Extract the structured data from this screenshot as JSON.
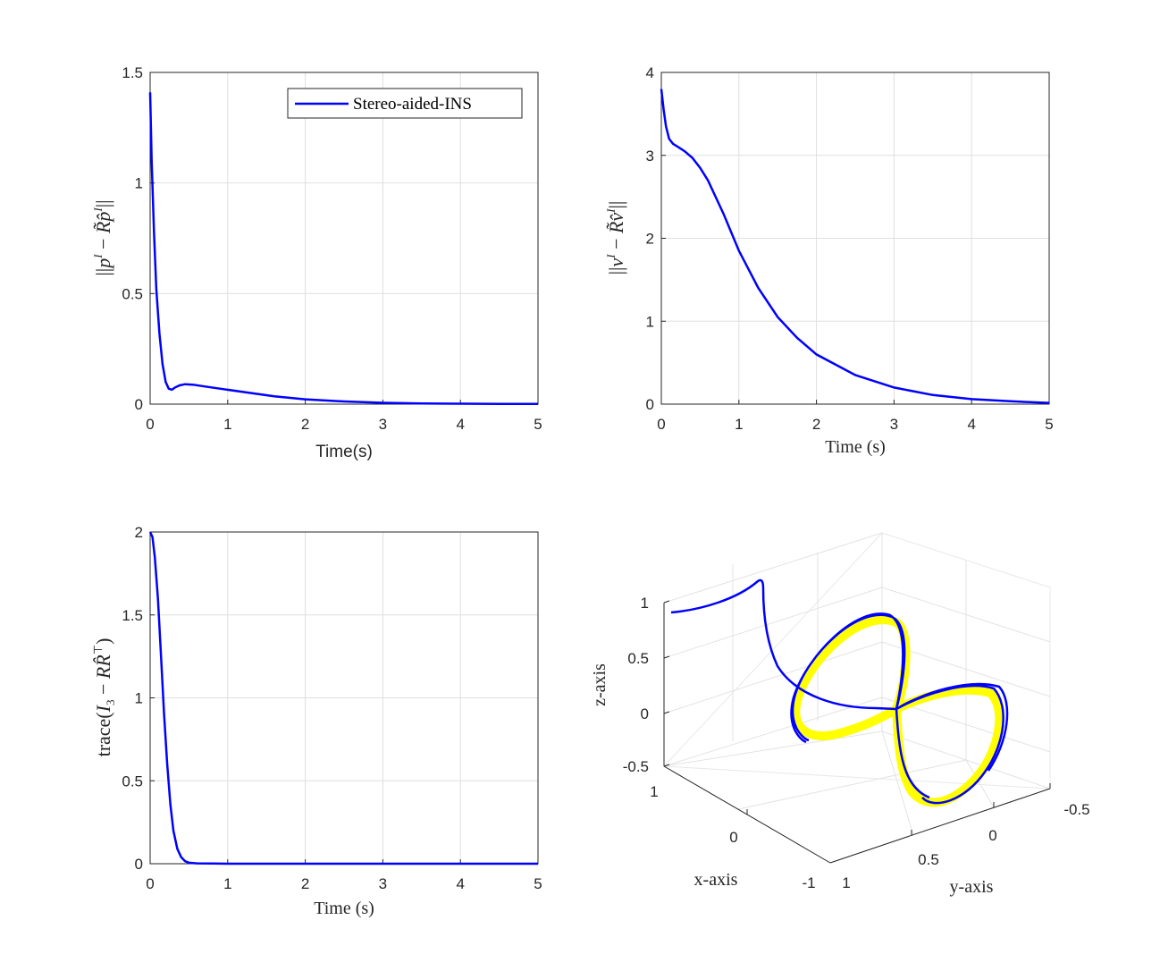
{
  "colors": {
    "series": "#0000ff",
    "reference": "#ffff00",
    "axis": "#262626",
    "grid": "#dfdfdf"
  },
  "chart_data": [
    {
      "type": "line",
      "xlabel": "Time(s)",
      "ylabel": "||p^I − R̃p̂^I||",
      "xlim": [
        0,
        5
      ],
      "ylim": [
        0,
        1.5
      ],
      "xticks": [
        "0",
        "1",
        "2",
        "3",
        "4",
        "5"
      ],
      "yticks": [
        "0",
        "0.5",
        "1",
        "1.5"
      ],
      "grid": true,
      "legend": {
        "position": "top-right",
        "entries": [
          "Stereo-aided-INS"
        ]
      },
      "series": [
        {
          "name": "Stereo-aided-INS",
          "x": [
            0,
            0.02,
            0.05,
            0.08,
            0.12,
            0.16,
            0.2,
            0.24,
            0.28,
            0.32,
            0.38,
            0.45,
            0.55,
            0.7,
            0.9,
            1.2,
            1.6,
            2.0,
            2.5,
            3.0,
            3.5,
            4.0,
            4.5,
            5.0
          ],
          "y": [
            1.41,
            1.1,
            0.78,
            0.52,
            0.32,
            0.18,
            0.1,
            0.07,
            0.065,
            0.075,
            0.085,
            0.09,
            0.088,
            0.08,
            0.07,
            0.055,
            0.035,
            0.022,
            0.012,
            0.006,
            0.003,
            0.002,
            0.001,
            0.001
          ]
        }
      ]
    },
    {
      "type": "line",
      "xlabel": "Time (s)",
      "ylabel": "||v^I − R̃v̂^I||",
      "xlim": [
        0,
        5
      ],
      "ylim": [
        0,
        4
      ],
      "xticks": [
        "0",
        "1",
        "2",
        "3",
        "4",
        "5"
      ],
      "yticks": [
        "0",
        "1",
        "2",
        "3",
        "4"
      ],
      "grid": true,
      "series": [
        {
          "x": [
            0,
            0.03,
            0.06,
            0.1,
            0.15,
            0.2,
            0.3,
            0.4,
            0.5,
            0.6,
            0.8,
            1.0,
            1.25,
            1.5,
            1.75,
            2.0,
            2.5,
            3.0,
            3.5,
            4.0,
            4.5,
            5.0
          ],
          "y": [
            3.8,
            3.55,
            3.35,
            3.2,
            3.14,
            3.11,
            3.05,
            2.97,
            2.85,
            2.7,
            2.3,
            1.85,
            1.4,
            1.05,
            0.8,
            0.6,
            0.35,
            0.2,
            0.11,
            0.06,
            0.035,
            0.015
          ]
        }
      ]
    },
    {
      "type": "line",
      "xlabel": "Time (s)",
      "ylabel": "trace(I₃ − RR̂ᵀ)",
      "xlim": [
        0,
        5
      ],
      "ylim": [
        0,
        2
      ],
      "xticks": [
        "0",
        "1",
        "2",
        "3",
        "4",
        "5"
      ],
      "yticks": [
        "0",
        "0.5",
        "1",
        "1.5",
        "2"
      ],
      "grid": true,
      "series": [
        {
          "x": [
            0,
            0.03,
            0.06,
            0.1,
            0.14,
            0.18,
            0.22,
            0.26,
            0.3,
            0.35,
            0.4,
            0.45,
            0.5,
            0.6,
            0.8,
            1.0,
            2.0,
            3.0,
            4.0,
            5.0
          ],
          "y": [
            2.0,
            1.97,
            1.85,
            1.6,
            1.25,
            0.9,
            0.6,
            0.36,
            0.2,
            0.09,
            0.04,
            0.015,
            0.006,
            0.002,
            0.001,
            0.0,
            0.0,
            0.0,
            0.0,
            0.0
          ]
        }
      ]
    },
    {
      "type": "line3d",
      "xlabel": "x-axis",
      "ylabel": "y-axis",
      "zlabel": "z-axis",
      "xlim": [
        -1,
        1
      ],
      "ylim": [
        -0.5,
        1
      ],
      "zlim": [
        -0.5,
        1
      ],
      "xticks": [
        "-1",
        "0",
        "1"
      ],
      "yticks": [
        "-0.5",
        "0",
        "0.5",
        "1"
      ],
      "zticks": [
        "-0.5",
        "0",
        "0.5",
        "1"
      ],
      "grid": true,
      "series": [
        {
          "desc_color": "yellow",
          "shape": "figure-eight trajectory in the y-z plane"
        },
        {
          "desc_color": "blue",
          "shape": "estimated trajectory converging to the figure-eight"
        }
      ]
    }
  ]
}
